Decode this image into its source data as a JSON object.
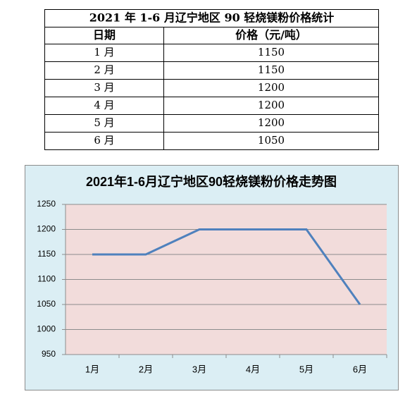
{
  "table": {
    "title": "2021 年 1-6 月辽宁地区 90 轻烧镁粉价格统计",
    "header": [
      "日期",
      "价格（元/吨）"
    ],
    "rows": [
      [
        "1 月",
        "1150"
      ],
      [
        "2 月",
        "1150"
      ],
      [
        "3 月",
        "1200"
      ],
      [
        "4 月",
        "1200"
      ],
      [
        "5 月",
        "1200"
      ],
      [
        "6 月",
        "1050"
      ]
    ]
  },
  "chart_data": {
    "type": "line",
    "title": "2021年1-6月辽宁地区90轻烧镁粉价格走势图",
    "categories": [
      "1月",
      "2月",
      "3月",
      "4月",
      "5月",
      "6月"
    ],
    "values": [
      1150,
      1150,
      1200,
      1200,
      1200,
      1050
    ],
    "color": "#4f81bd",
    "ylim": [
      950,
      1250
    ],
    "yticks": [
      950,
      1000,
      1050,
      1100,
      1150,
      1200,
      1250
    ],
    "grid": true
  }
}
